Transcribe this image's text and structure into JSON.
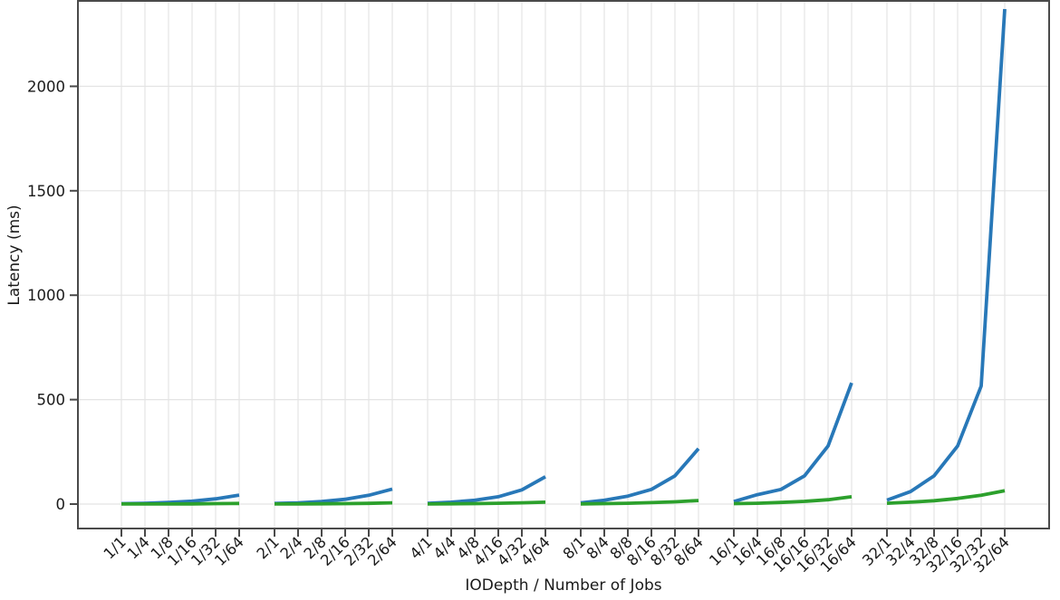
{
  "chart_data": {
    "type": "line",
    "title": "",
    "xlabel": "IODepth / Number of Jobs",
    "ylabel": "Latency (ms)",
    "categories": [
      "1/1",
      "1/4",
      "1/8",
      "1/16",
      "1/32",
      "1/64",
      "2/1",
      "2/4",
      "2/8",
      "2/16",
      "2/32",
      "2/64",
      "4/1",
      "4/4",
      "4/8",
      "4/16",
      "4/32",
      "4/64",
      "8/1",
      "8/4",
      "8/8",
      "8/16",
      "8/32",
      "8/64",
      "16/1",
      "16/4",
      "16/8",
      "16/16",
      "16/32",
      "16/64",
      "32/1",
      "32/4",
      "32/8",
      "32/16",
      "32/32",
      "32/64"
    ],
    "group_size": 6,
    "lines_broken_between_groups": true,
    "x_tick_rotation_deg": 45,
    "yticks": [
      0,
      500,
      1000,
      1500,
      2000
    ],
    "ylim": [
      -117,
      2420
    ],
    "grid": true,
    "legend_visible": false,
    "series": [
      {
        "name": "blue",
        "color": "#2878b8",
        "values": [
          2,
          4,
          8,
          14,
          25,
          43,
          3,
          6,
          12,
          23,
          42,
          72,
          4,
          9,
          18,
          35,
          68,
          131,
          6,
          18,
          38,
          70,
          135,
          265,
          12,
          45,
          70,
          135,
          278,
          580,
          19,
          60,
          135,
          278,
          565,
          2370
        ]
      },
      {
        "name": "green",
        "color": "#2ca02c",
        "values": [
          0.3,
          0.4,
          0.6,
          1,
          2,
          3,
          0.4,
          0.7,
          1.2,
          2,
          3.5,
          6,
          0.6,
          1.2,
          2,
          4,
          6,
          9,
          1,
          2,
          4,
          7,
          11,
          17,
          2,
          4,
          8,
          13,
          21,
          35,
          4,
          9,
          16,
          27,
          42,
          64
        ]
      }
    ],
    "colors": {
      "background": "#ffffff",
      "grid": "#e4e4e4",
      "spine": "#4a4a4a",
      "tick_text": "#1a1a1a"
    }
  }
}
